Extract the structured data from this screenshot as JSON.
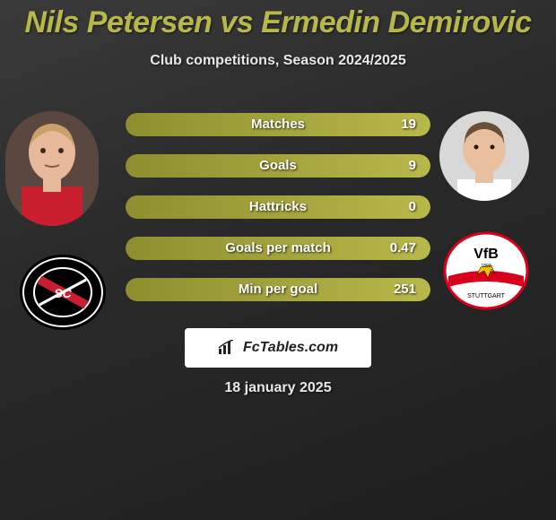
{
  "title": "Nils Petersen vs Ermedin Demirovic",
  "subtitle": "Club competitions, Season 2024/2025",
  "date": "18 january 2025",
  "watermark": "FcTables.com",
  "colors": {
    "accent": "#b8b84a",
    "accent_dark": "#8e8e2f",
    "bar_bg": "rgba(255,255,255,0.08)",
    "text": "#ffffff"
  },
  "stats": [
    {
      "label": "Matches",
      "value": "19",
      "fill_pct": 100
    },
    {
      "label": "Goals",
      "value": "9",
      "fill_pct": 100
    },
    {
      "label": "Hattricks",
      "value": "0",
      "fill_pct": 100
    },
    {
      "label": "Goals per match",
      "value": "0.47",
      "fill_pct": 100
    },
    {
      "label": "Min per goal",
      "value": "251",
      "fill_pct": 100
    }
  ],
  "player_left": {
    "name": "Nils Petersen",
    "skin": "#e8b89a",
    "hair": "#c8a068",
    "jersey": "#c81e2d"
  },
  "player_right": {
    "name": "Ermedin Demirovic",
    "skin": "#e8c0a0",
    "hair": "#6a5038",
    "jersey": "#ffffff"
  },
  "club_left": {
    "name": "SC Freiburg",
    "bg": "#000000",
    "stripe": "#ffffff",
    "accent": "#c81e2d"
  },
  "club_right": {
    "name": "VfB Stuttgart",
    "bg": "#ffffff",
    "ring": "#d9001b",
    "band": "#d9001b",
    "text": "#000000"
  }
}
